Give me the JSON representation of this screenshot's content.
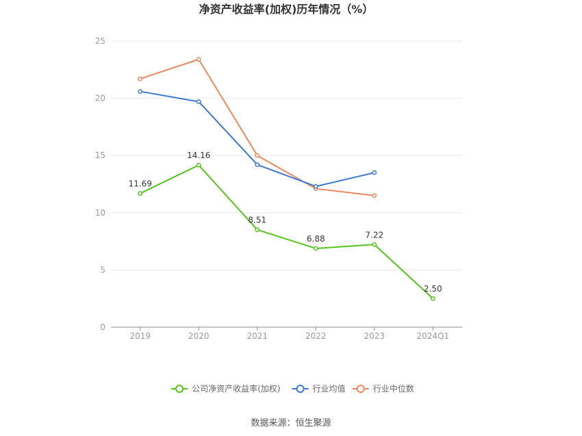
{
  "chart_data": {
    "type": "line",
    "title": "净资产收益率(加权)历年情况（%）",
    "categories": [
      "2019",
      "2020",
      "2021",
      "2022",
      "2023",
      "2024Q1"
    ],
    "ylim": [
      0,
      25
    ],
    "yticks": [
      0,
      5,
      10,
      15,
      20,
      25
    ],
    "grid": true,
    "legend_position": "bottom",
    "series": [
      {
        "name": "公司净资产收益率(加权)",
        "color": "#52c41a",
        "values": [
          11.69,
          14.16,
          8.51,
          6.88,
          7.22,
          2.5
        ],
        "labels": [
          "11.69",
          "14.16",
          "8.51",
          "6.88",
          "7.22",
          "2.50"
        ]
      },
      {
        "name": "行业均值",
        "color": "#3a78d6",
        "values": [
          20.6,
          19.7,
          14.2,
          12.3,
          13.5,
          null
        ]
      },
      {
        "name": "行业中位数",
        "color": "#f0875a",
        "values": [
          21.7,
          23.4,
          15.0,
          12.1,
          11.5,
          null
        ]
      }
    ]
  },
  "source": "数据来源：恒生聚源"
}
